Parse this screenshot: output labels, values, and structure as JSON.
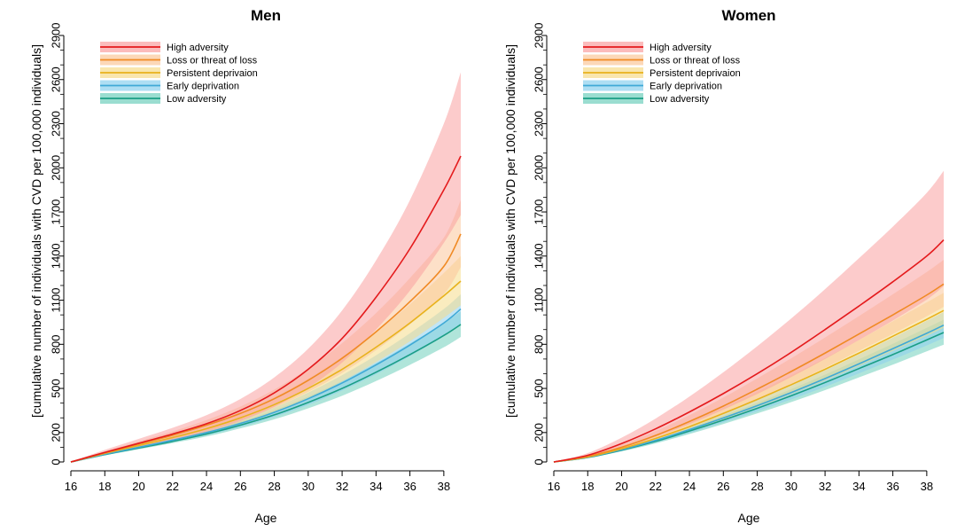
{
  "chart_data": [
    {
      "type": "line",
      "title": "Men",
      "xlabel": "Age",
      "ylabel": "[cumulative number of individuals with CVD per 100,000 individuals]",
      "xlim": [
        16,
        39
      ],
      "ylim": [
        0,
        2900
      ],
      "x_ticks": [
        16,
        18,
        20,
        22,
        24,
        26,
        28,
        30,
        32,
        34,
        36,
        38
      ],
      "y_ticks": [
        0,
        200,
        500,
        800,
        1100,
        1400,
        1700,
        2000,
        2300,
        2600,
        2900
      ],
      "y_minor_ticks": [
        100,
        300,
        400,
        600,
        700,
        900,
        1000,
        1200,
        1300,
        1500,
        1600,
        1800,
        1900,
        2100,
        2200,
        2400,
        2500,
        2700,
        2800
      ],
      "legend_position": "top-left",
      "x": [
        16,
        18,
        20,
        22,
        24,
        26,
        28,
        30,
        32,
        34,
        36,
        38,
        39
      ],
      "series": [
        {
          "name": "Low adversity",
          "color": "#1a9e85",
          "band_color": "#6fcfbc",
          "values": [
            0,
            50,
            95,
            140,
            190,
            250,
            320,
            405,
            500,
            610,
            730,
            860,
            935
          ],
          "lower": [
            0,
            45,
            86,
            128,
            173,
            228,
            290,
            365,
            450,
            550,
            660,
            780,
            850
          ],
          "upper": [
            0,
            56,
            105,
            153,
            208,
            274,
            352,
            445,
            550,
            672,
            805,
            945,
            1025
          ]
        },
        {
          "name": "Early deprivation",
          "color": "#3fa9d6",
          "band_color": "#8cd0ee",
          "values": [
            0,
            52,
            100,
            148,
            200,
            262,
            338,
            430,
            537,
            660,
            795,
            945,
            1040
          ],
          "lower": [
            0,
            46,
            90,
            134,
            182,
            238,
            306,
            388,
            485,
            596,
            720,
            855,
            940
          ],
          "upper": [
            0,
            58,
            110,
            162,
            219,
            287,
            370,
            472,
            590,
            725,
            875,
            1040,
            1140
          ]
        },
        {
          "name": "Persistent deprivaion",
          "color": "#e8b21c",
          "band_color": "#f6dc8a",
          "values": [
            0,
            58,
            112,
            166,
            226,
            300,
            390,
            500,
            630,
            780,
            945,
            1130,
            1230
          ],
          "lower": [
            0,
            50,
            98,
            146,
            198,
            262,
            340,
            435,
            547,
            678,
            820,
            980,
            1065
          ],
          "upper": [
            0,
            66,
            127,
            187,
            256,
            340,
            442,
            567,
            715,
            885,
            1072,
            1285,
            1400
          ]
        },
        {
          "name": "Loss or threat of loss",
          "color": "#f08a24",
          "band_color": "#fbc79a",
          "values": [
            0,
            62,
            122,
            182,
            250,
            330,
            430,
            555,
            705,
            885,
            1090,
            1330,
            1550
          ],
          "lower": [
            0,
            52,
            104,
            156,
            215,
            285,
            370,
            477,
            605,
            760,
            935,
            1140,
            1325
          ],
          "upper": [
            0,
            72,
            140,
            208,
            285,
            377,
            492,
            635,
            808,
            1012,
            1250,
            1525,
            1780
          ]
        },
        {
          "name": "High adversity",
          "color": "#e41a1c",
          "band_color": "#f9a0a0",
          "values": [
            0,
            65,
            127,
            190,
            260,
            350,
            470,
            630,
            840,
            1120,
            1450,
            1850,
            2080
          ],
          "lower": [
            0,
            50,
            100,
            150,
            205,
            278,
            375,
            505,
            675,
            900,
            1165,
            1490,
            1680
          ],
          "upper": [
            0,
            82,
            157,
            232,
            318,
            428,
            575,
            770,
            1030,
            1370,
            1780,
            2300,
            2650
          ]
        }
      ],
      "legend_order": [
        "High adversity",
        "Loss or threat of loss",
        "Persistent deprivaion",
        "Early deprivation",
        "Low adversity"
      ]
    },
    {
      "type": "line",
      "title": "Women",
      "xlabel": "Age",
      "ylabel": "[cumulative number of individuals with CVD per 100,000 individuals]",
      "xlim": [
        16,
        39
      ],
      "ylim": [
        0,
        2900
      ],
      "x_ticks": [
        16,
        18,
        20,
        22,
        24,
        26,
        28,
        30,
        32,
        34,
        36,
        38
      ],
      "y_ticks": [
        0,
        200,
        500,
        800,
        1100,
        1400,
        1700,
        2000,
        2300,
        2600,
        2900
      ],
      "y_minor_ticks": [
        100,
        300,
        400,
        600,
        700,
        900,
        1000,
        1200,
        1300,
        1500,
        1600,
        1800,
        1900,
        2100,
        2200,
        2400,
        2500,
        2700,
        2800
      ],
      "legend_position": "top-left",
      "x": [
        16,
        18,
        20,
        22,
        24,
        26,
        28,
        30,
        32,
        34,
        36,
        38,
        39
      ],
      "series": [
        {
          "name": "Low adversity",
          "color": "#1a9e85",
          "band_color": "#6fcfbc",
          "values": [
            0,
            30,
            80,
            140,
            210,
            285,
            365,
            450,
            540,
            635,
            730,
            830,
            880
          ],
          "lower": [
            0,
            27,
            72,
            126,
            190,
            258,
            330,
            407,
            488,
            575,
            662,
            752,
            797
          ],
          "upper": [
            0,
            33,
            88,
            154,
            231,
            314,
            402,
            495,
            594,
            698,
            803,
            912,
            968
          ]
        },
        {
          "name": "Early deprivation",
          "color": "#3fa9d6",
          "band_color": "#8cd0ee",
          "values": [
            0,
            32,
            84,
            147,
            220,
            299,
            383,
            472,
            567,
            667,
            770,
            875,
            930
          ],
          "lower": [
            0,
            28,
            75,
            131,
            197,
            268,
            344,
            425,
            511,
            602,
            696,
            792,
            843
          ],
          "upper": [
            0,
            36,
            93,
            163,
            243,
            330,
            422,
            519,
            623,
            732,
            845,
            960,
            1020
          ]
        },
        {
          "name": "Persistent deprivaion",
          "color": "#e8b21c",
          "band_color": "#f6dc8a",
          "values": [
            0,
            34,
            90,
            160,
            240,
            330,
            425,
            525,
            630,
            740,
            855,
            970,
            1030
          ],
          "lower": [
            0,
            29,
            78,
            139,
            210,
            290,
            374,
            462,
            555,
            653,
            755,
            858,
            912
          ],
          "upper": [
            0,
            39,
            102,
            181,
            271,
            371,
            477,
            589,
            706,
            829,
            957,
            1085,
            1150
          ]
        },
        {
          "name": "Loss or threat of loss",
          "color": "#f08a24",
          "band_color": "#fbc79a",
          "values": [
            0,
            38,
            100,
            180,
            275,
            380,
            495,
            615,
            740,
            870,
            1000,
            1135,
            1210
          ],
          "lower": [
            0,
            31,
            84,
            152,
            234,
            325,
            425,
            530,
            640,
            755,
            870,
            990,
            1055
          ],
          "upper": [
            0,
            46,
            118,
            210,
            318,
            438,
            568,
            705,
            846,
            992,
            1140,
            1292,
            1375
          ]
        },
        {
          "name": "High adversity",
          "color": "#e41a1c",
          "band_color": "#f9a0a0",
          "values": [
            0,
            45,
            125,
            225,
            340,
            465,
            600,
            745,
            900,
            1060,
            1225,
            1400,
            1510
          ],
          "lower": [
            0,
            33,
            93,
            170,
            258,
            356,
            462,
            577,
            700,
            829,
            962,
            1104,
            1195
          ],
          "upper": [
            0,
            60,
            165,
            295,
            445,
            610,
            787,
            975,
            1175,
            1385,
            1600,
            1830,
            1980
          ]
        }
      ],
      "legend_order": [
        "High adversity",
        "Loss or threat of loss",
        "Persistent deprivaion",
        "Early deprivation",
        "Low adversity"
      ]
    }
  ]
}
